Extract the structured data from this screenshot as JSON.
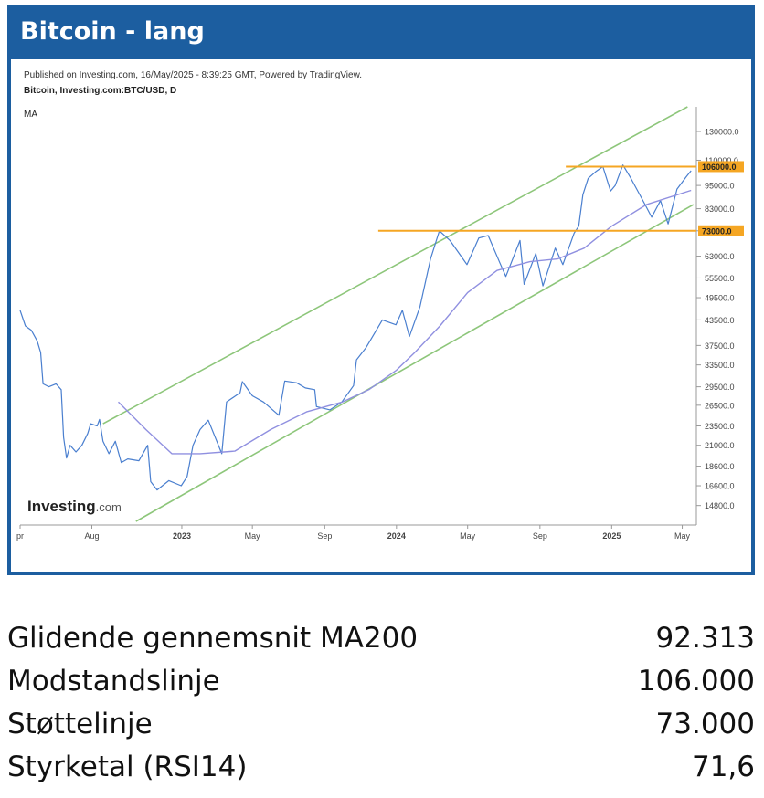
{
  "panel": {
    "title": "Bitcoin - lang"
  },
  "chart_data": {
    "type": "line",
    "published": "Published on Investing.com, 16/May/2025 - 8:39:25 GMT, Powered by TradingView.",
    "instrument": "Bitcoin, Investing.com:BTC/USD, D",
    "indicator": "MA",
    "logo_text": {
      "bold": "Investing",
      "light": ".com"
    },
    "y_scale": "log",
    "ylim": [
      13500,
      150000
    ],
    "y_ticks": [
      130000,
      110000,
      95000,
      83000,
      73000,
      63000,
      55500,
      49500,
      43500,
      37500,
      33500,
      29500,
      26500,
      23500,
      21000,
      18600,
      16600,
      14800
    ],
    "y_tick_labels": [
      "130000.0",
      "110000.0",
      "95000.0",
      "83000.0",
      "",
      "63000.0",
      "55500.0",
      "49500.0",
      "43500.0",
      "37500.0",
      "33500.0",
      "29500.0",
      "26500.0",
      "23500.0",
      "21000.0",
      "18600.0",
      "16600.0",
      "14800.0"
    ],
    "x_ticks": [
      {
        "date": "2022-04-01",
        "label": "pr"
      },
      {
        "date": "2022-08-01",
        "label": "Aug"
      },
      {
        "date": "2023-01-01",
        "label": "2023",
        "bold": true
      },
      {
        "date": "2023-05-01",
        "label": "May"
      },
      {
        "date": "2023-09-01",
        "label": "Sep"
      },
      {
        "date": "2024-01-01",
        "label": "2024",
        "bold": true
      },
      {
        "date": "2024-05-01",
        "label": "May"
      },
      {
        "date": "2024-09-01",
        "label": "Sep"
      },
      {
        "date": "2025-01-01",
        "label": "2025",
        "bold": true
      },
      {
        "date": "2025-05-01",
        "label": "May"
      }
    ],
    "xlim": [
      "2022-04-01",
      "2025-05-25"
    ],
    "series": [
      {
        "kind": "price",
        "color": "#4a7fcf",
        "points": [
          [
            "2022-04-01",
            46000
          ],
          [
            "2022-04-10",
            42000
          ],
          [
            "2022-04-20",
            41000
          ],
          [
            "2022-04-30",
            38500
          ],
          [
            "2022-05-06",
            36000
          ],
          [
            "2022-05-10",
            30000
          ],
          [
            "2022-05-20",
            29500
          ],
          [
            "2022-06-01",
            30000
          ],
          [
            "2022-06-10",
            29000
          ],
          [
            "2022-06-14",
            22000
          ],
          [
            "2022-06-19",
            19500
          ],
          [
            "2022-06-25",
            21000
          ],
          [
            "2022-07-05",
            20200
          ],
          [
            "2022-07-15",
            21000
          ],
          [
            "2022-07-25",
            22500
          ],
          [
            "2022-07-30",
            23800
          ],
          [
            "2022-08-10",
            23500
          ],
          [
            "2022-08-14",
            24400
          ],
          [
            "2022-08-20",
            21500
          ],
          [
            "2022-08-30",
            20000
          ],
          [
            "2022-09-10",
            21500
          ],
          [
            "2022-09-20",
            19000
          ],
          [
            "2022-10-01",
            19400
          ],
          [
            "2022-10-20",
            19200
          ],
          [
            "2022-11-04",
            21000
          ],
          [
            "2022-11-09",
            17000
          ],
          [
            "2022-11-20",
            16200
          ],
          [
            "2022-12-10",
            17100
          ],
          [
            "2022-12-31",
            16600
          ],
          [
            "2023-01-10",
            17500
          ],
          [
            "2023-01-20",
            21000
          ],
          [
            "2023-02-01",
            23000
          ],
          [
            "2023-02-15",
            24300
          ],
          [
            "2023-03-10",
            20000
          ],
          [
            "2023-03-18",
            27000
          ],
          [
            "2023-04-10",
            28500
          ],
          [
            "2023-04-14",
            30400
          ],
          [
            "2023-05-01",
            28000
          ],
          [
            "2023-05-20",
            27000
          ],
          [
            "2023-06-15",
            25000
          ],
          [
            "2023-06-25",
            30500
          ],
          [
            "2023-07-15",
            30200
          ],
          [
            "2023-07-30",
            29300
          ],
          [
            "2023-08-15",
            29000
          ],
          [
            "2023-08-18",
            26300
          ],
          [
            "2023-09-10",
            25800
          ],
          [
            "2023-09-30",
            27000
          ],
          [
            "2023-10-20",
            29700
          ],
          [
            "2023-10-25",
            34500
          ],
          [
            "2023-11-10",
            37000
          ],
          [
            "2023-12-08",
            43500
          ],
          [
            "2023-12-31",
            42300
          ],
          [
            "2024-01-11",
            46000
          ],
          [
            "2024-01-23",
            39500
          ],
          [
            "2024-02-10",
            47000
          ],
          [
            "2024-02-28",
            62000
          ],
          [
            "2024-03-14",
            73000
          ],
          [
            "2024-04-01",
            69000
          ],
          [
            "2024-04-30",
            60000
          ],
          [
            "2024-05-20",
            70000
          ],
          [
            "2024-06-05",
            71000
          ],
          [
            "2024-06-25",
            60500
          ],
          [
            "2024-07-05",
            56000
          ],
          [
            "2024-07-29",
            69000
          ],
          [
            "2024-08-05",
            53500
          ],
          [
            "2024-08-25",
            64000
          ],
          [
            "2024-09-06",
            53000
          ],
          [
            "2024-09-27",
            66000
          ],
          [
            "2024-10-10",
            60000
          ],
          [
            "2024-10-29",
            72000
          ],
          [
            "2024-11-06",
            75000
          ],
          [
            "2024-11-13",
            90000
          ],
          [
            "2024-11-22",
            99000
          ],
          [
            "2024-12-05",
            103000
          ],
          [
            "2024-12-17",
            106000
          ],
          [
            "2024-12-30",
            92000
          ],
          [
            "2025-01-07",
            95000
          ],
          [
            "2025-01-20",
            107000
          ],
          [
            "2025-02-01",
            100000
          ],
          [
            "2025-02-25",
            86000
          ],
          [
            "2025-03-10",
            79000
          ],
          [
            "2025-03-25",
            87000
          ],
          [
            "2025-04-07",
            76000
          ],
          [
            "2025-04-22",
            93000
          ],
          [
            "2025-05-08",
            100000
          ],
          [
            "2025-05-16",
            103500
          ]
        ]
      },
      {
        "kind": "MA200",
        "color": "#9090e0",
        "points": [
          [
            "2022-09-15",
            27000
          ],
          [
            "2022-11-01",
            23000
          ],
          [
            "2022-12-15",
            20000
          ],
          [
            "2023-02-01",
            20000
          ],
          [
            "2023-04-01",
            20300
          ],
          [
            "2023-06-01",
            23000
          ],
          [
            "2023-08-01",
            25500
          ],
          [
            "2023-10-01",
            27000
          ],
          [
            "2023-11-15",
            29000
          ],
          [
            "2024-01-01",
            32500
          ],
          [
            "2024-02-01",
            36000
          ],
          [
            "2024-03-15",
            42000
          ],
          [
            "2024-05-01",
            51000
          ],
          [
            "2024-06-20",
            58000
          ],
          [
            "2024-08-15",
            61000
          ],
          [
            "2024-10-01",
            62000
          ],
          [
            "2024-11-15",
            66000
          ],
          [
            "2025-01-01",
            75000
          ],
          [
            "2025-03-01",
            85000
          ],
          [
            "2025-05-16",
            92313
          ]
        ]
      }
    ],
    "channel_lines": [
      {
        "color": "#8dc67a",
        "from": [
          "2022-08-20",
          23800
        ],
        "to": [
          "2025-05-10",
          150000
        ]
      },
      {
        "color": "#8dc67a",
        "from": [
          "2022-10-15",
          13500
        ],
        "to": [
          "2025-05-20",
          85000
        ]
      }
    ],
    "levels": [
      {
        "value": 106000,
        "label": "106000.0",
        "from": "2024-10-15",
        "color": "#f5a623"
      },
      {
        "value": 73000,
        "label": "73000.0",
        "from": "2023-12-01",
        "color": "#f5a623"
      }
    ]
  },
  "stats": [
    {
      "label": "Glidende gennemsnit MA200",
      "value": "92.313"
    },
    {
      "label": "Modstandslinje",
      "value": "106.000"
    },
    {
      "label": "Støttelinje",
      "value": "73.000"
    },
    {
      "label": "Styrketal (RSI14)",
      "value": "71,6"
    }
  ]
}
